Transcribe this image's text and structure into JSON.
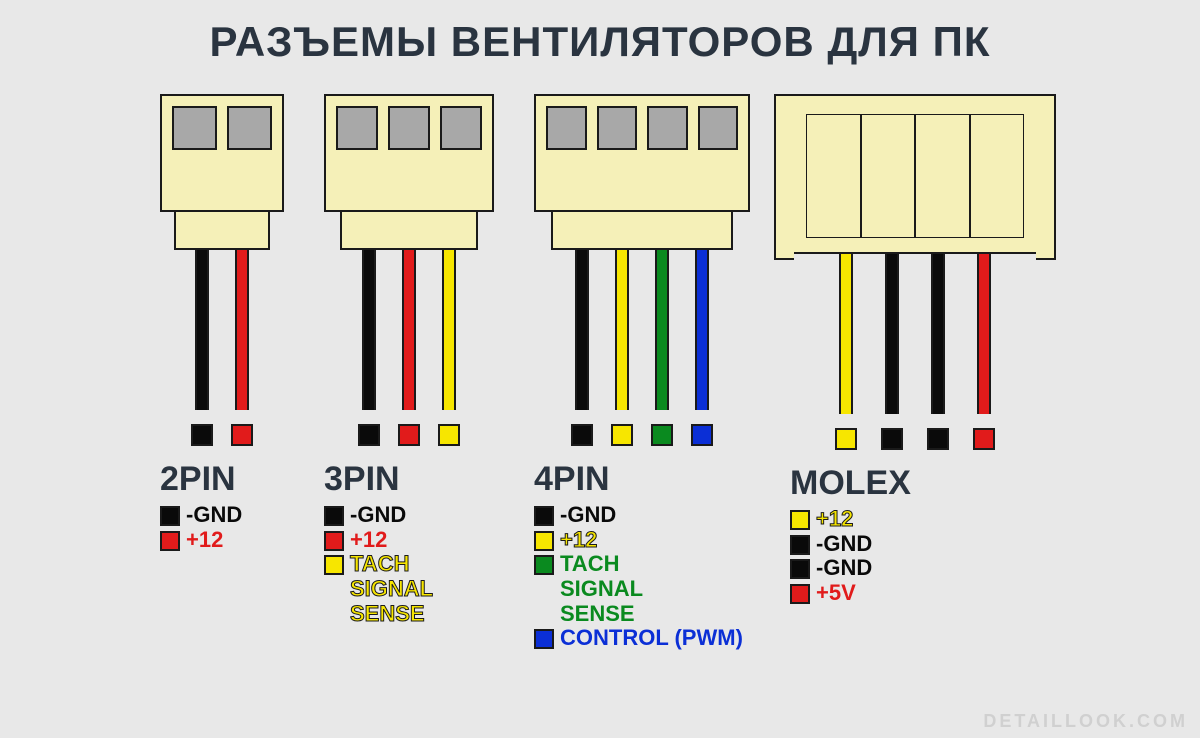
{
  "title": "РАЗЪЕМЫ ВЕНТИЛЯТОРОВ ДЛЯ ПК",
  "watermark": "DETAILLOOK.COM",
  "colors": {
    "black": "#0a0a0a",
    "red": "#e11b1b",
    "yellow": "#f7e600",
    "green": "#0a8a1f",
    "blue": "#0b2fd6",
    "body": "#f5f0b8",
    "slot": "#a8a8a8",
    "bg": "#e8e8e8",
    "title": "#2a3440"
  },
  "connectors": [
    {
      "id": "2pin",
      "label": "2PIN",
      "body_width": 124,
      "body_height": 118,
      "stem_width": 96,
      "slots": 2,
      "wires": [
        "black",
        "red"
      ],
      "wire_gap": 26,
      "legend": [
        {
          "colorKey": "black",
          "text": "-GND"
        },
        {
          "colorKey": "red",
          "text": "+12"
        }
      ]
    },
    {
      "id": "3pin",
      "label": "3PIN",
      "body_width": 170,
      "body_height": 118,
      "stem_width": 138,
      "slots": 3,
      "wires": [
        "black",
        "red",
        "yellow"
      ],
      "wire_gap": 26,
      "legend": [
        {
          "colorKey": "black",
          "text": "-GND"
        },
        {
          "colorKey": "red",
          "text": "+12"
        },
        {
          "colorKey": "yellow",
          "text": "TACH\nSIGNAL\nSENSE"
        }
      ]
    },
    {
      "id": "4pin",
      "label": "4PIN",
      "body_width": 216,
      "body_height": 118,
      "stem_width": 182,
      "slots": 4,
      "wires": [
        "black",
        "yellow",
        "green",
        "blue"
      ],
      "wire_gap": 26,
      "legend": [
        {
          "colorKey": "black",
          "text": "-GND"
        },
        {
          "colorKey": "yellow",
          "text": "+12"
        },
        {
          "colorKey": "green",
          "text": "TACH\nSIGNAL\nSENSE"
        },
        {
          "colorKey": "blue",
          "text": "CONTROL (PWM)"
        }
      ]
    },
    {
      "id": "molex",
      "label": "MOLEX",
      "is_molex": true,
      "wires": [
        "yellow",
        "black",
        "black",
        "red"
      ],
      "wire_gap": 32,
      "legend": [
        {
          "colorKey": "yellow",
          "text": "+12"
        },
        {
          "colorKey": "black",
          "text": "-GND"
        },
        {
          "colorKey": "black",
          "text": "-GND"
        },
        {
          "colorKey": "red",
          "text": "+5V"
        }
      ]
    }
  ]
}
